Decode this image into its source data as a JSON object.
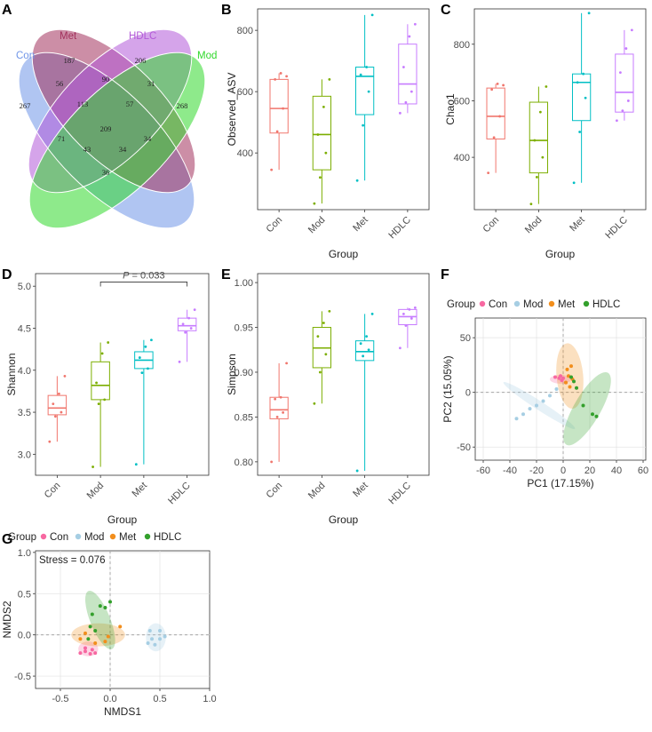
{
  "panels": {
    "A": {
      "letter": "A",
      "type": "venn",
      "sets": [
        {
          "name": "Con",
          "color": "#6f95e8"
        },
        {
          "name": "Met",
          "color": "#a2315d"
        },
        {
          "name": "HDLC",
          "color": "#b35ad8"
        },
        {
          "name": "Mod",
          "color": "#31d82c"
        }
      ],
      "regions": {
        "con_only": "267",
        "met_only": "187",
        "hdlc_only": "206",
        "mod_only": "268",
        "con_met": "56",
        "met_hdlc": "90",
        "hdlc_mod": "31",
        "con_met_hdlc": "113",
        "met_hdlc_mod": "57",
        "all": "209",
        "con_hdlc": "71",
        "met_mod": "34",
        "con_hdlc_mod": "34",
        "con_met_mod": "43",
        "con_mod": "36"
      }
    },
    "B": {
      "letter": "B",
      "type": "box",
      "ylabel": "Observed_ASV",
      "xlabel": "Group",
      "categories": [
        "Con",
        "Mod",
        "Met",
        "HDLC"
      ],
      "colors": [
        "#f0766d",
        "#7cae00",
        "#00bfc4",
        "#c77cff"
      ],
      "yticks": [
        "400",
        "600",
        "800"
      ],
      "ylim": [
        215,
        870
      ],
      "boxes": [
        {
          "min": 345,
          "q1": 465,
          "median": 545,
          "q3": 640,
          "max": 660
        },
        {
          "min": 235,
          "q1": 345,
          "median": 460,
          "q3": 585,
          "max": 640
        },
        {
          "min": 310,
          "q1": 525,
          "median": 650,
          "q3": 680,
          "max": 850
        },
        {
          "min": 530,
          "q1": 560,
          "median": 625,
          "q3": 755,
          "max": 820
        }
      ],
      "points": [
        [
          345,
          470,
          545,
          640,
          660,
          650
        ],
        [
          235,
          320,
          400,
          460,
          550,
          640
        ],
        [
          310,
          490,
          600,
          655,
          680,
          850
        ],
        [
          530,
          565,
          600,
          680,
          780,
          820
        ]
      ]
    },
    "C": {
      "letter": "C",
      "type": "box",
      "ylabel": "Chao1",
      "xlabel": "Group",
      "categories": [
        "Con",
        "Mod",
        "Met",
        "HDLC"
      ],
      "colors": [
        "#f0766d",
        "#7cae00",
        "#00bfc4",
        "#c77cff"
      ],
      "yticks": [
        "400",
        "600",
        "800"
      ],
      "ylim": [
        215,
        925
      ],
      "boxes": [
        {
          "min": 345,
          "q1": 465,
          "median": 545,
          "q3": 645,
          "max": 660
        },
        {
          "min": 235,
          "q1": 345,
          "median": 460,
          "q3": 595,
          "max": 650
        },
        {
          "min": 310,
          "q1": 530,
          "median": 665,
          "q3": 695,
          "max": 910
        },
        {
          "min": 530,
          "q1": 560,
          "median": 630,
          "q3": 765,
          "max": 850
        }
      ],
      "points": [
        [
          345,
          470,
          545,
          640,
          660,
          655
        ],
        [
          235,
          330,
          400,
          460,
          560,
          650
        ],
        [
          310,
          490,
          610,
          665,
          695,
          910
        ],
        [
          530,
          565,
          600,
          700,
          785,
          850
        ]
      ]
    },
    "D": {
      "letter": "D",
      "type": "box",
      "ylabel": "Shannon",
      "xlabel": "Group",
      "categories": [
        "Con",
        "Mod",
        "Met",
        "HDLC"
      ],
      "colors": [
        "#f0766d",
        "#7cae00",
        "#00bfc4",
        "#c77cff"
      ],
      "yticks": [
        "3.0",
        "3.5",
        "4.0",
        "4.5",
        "5.0"
      ],
      "ylim": [
        2.75,
        5.15
      ],
      "boxes": [
        {
          "min": 3.15,
          "q1": 3.47,
          "median": 3.55,
          "q3": 3.7,
          "max": 3.93
        },
        {
          "min": 2.85,
          "q1": 3.65,
          "median": 3.82,
          "q3": 4.1,
          "max": 4.33
        },
        {
          "min": 2.88,
          "q1": 4.02,
          "median": 4.12,
          "q3": 4.22,
          "max": 4.36
        },
        {
          "min": 4.1,
          "q1": 4.47,
          "median": 4.53,
          "q3": 4.62,
          "max": 4.72
        }
      ],
      "points": [
        [
          3.15,
          3.45,
          3.5,
          3.6,
          3.72,
          3.93
        ],
        [
          2.85,
          3.6,
          3.65,
          3.85,
          4.2,
          4.33
        ],
        [
          2.88,
          3.97,
          4.02,
          4.15,
          4.28,
          4.36
        ],
        [
          4.1,
          4.45,
          4.5,
          4.55,
          4.62,
          4.72
        ]
      ],
      "sig_prefix": "P",
      "sig_value": " = 0.033",
      "sig_from": 1,
      "sig_to": 3,
      "sig_y": 5.05
    },
    "E": {
      "letter": "E",
      "type": "box",
      "ylabel": "Simpson",
      "xlabel": "Group",
      "categories": [
        "Con",
        "Mod",
        "Met",
        "HDLC"
      ],
      "colors": [
        "#f0766d",
        "#7cae00",
        "#00bfc4",
        "#c77cff"
      ],
      "yticks": [
        "0.80",
        "0.85",
        "0.90",
        "0.95",
        "1.00"
      ],
      "ylim": [
        0.785,
        1.01
      ],
      "boxes": [
        {
          "min": 0.8,
          "q1": 0.848,
          "median": 0.858,
          "q3": 0.872,
          "max": 0.91
        },
        {
          "min": 0.865,
          "q1": 0.905,
          "median": 0.927,
          "q3": 0.95,
          "max": 0.968
        },
        {
          "min": 0.79,
          "q1": 0.913,
          "median": 0.923,
          "q3": 0.935,
          "max": 0.965
        },
        {
          "min": 0.927,
          "q1": 0.953,
          "median": 0.962,
          "q3": 0.97,
          "max": 0.972
        }
      ],
      "points": [
        [
          0.8,
          0.85,
          0.855,
          0.87,
          0.872,
          0.91
        ],
        [
          0.865,
          0.9,
          0.92,
          0.94,
          0.955,
          0.968
        ],
        [
          0.79,
          0.918,
          0.925,
          0.932,
          0.94,
          0.965
        ],
        [
          0.927,
          0.952,
          0.96,
          0.965,
          0.97,
          0.972
        ]
      ]
    },
    "F": {
      "letter": "F",
      "type": "scatter",
      "xlabel": "PC1 (17.15%)",
      "ylabel": "PC2 (15.05%)",
      "xticks": [
        "-60",
        "-40",
        "-20",
        "0",
        "20",
        "40",
        "60"
      ],
      "yticks": [
        "-50",
        "0",
        "50"
      ],
      "xlim": [
        -66,
        62
      ],
      "ylim": [
        -62,
        68
      ],
      "legend_title": "Group",
      "groups": [
        {
          "name": "Con",
          "color": "#f768a1",
          "points": [
            [
              -6,
              14
            ],
            [
              -3,
              13
            ],
            [
              -1,
              11
            ],
            [
              0,
              13
            ],
            [
              2,
              9
            ],
            [
              -2,
              15
            ]
          ],
          "ellipse": {
            "cx": -2,
            "cy": 12,
            "rx": 8,
            "ry": 4,
            "angle": 0
          }
        },
        {
          "name": "Mod",
          "color": "#a6cee3",
          "points": [
            [
              -35,
              -24
            ],
            [
              -30,
              -20
            ],
            [
              -25,
              -15
            ],
            [
              -20,
              -12
            ],
            [
              -15,
              -8
            ],
            [
              -10,
              -3
            ],
            [
              -5,
              3
            ]
          ],
          "ellipse": {
            "cx": -18,
            "cy": -12,
            "rx": 32,
            "ry": 4,
            "angle": -33
          }
        },
        {
          "name": "Met",
          "color": "#f28e1c",
          "points": [
            [
              3,
              21
            ],
            [
              6,
              24
            ],
            [
              4,
              15
            ],
            [
              7,
              12
            ],
            [
              2,
              9
            ],
            [
              5,
              5
            ]
          ],
          "ellipse": {
            "cx": 5,
            "cy": 15,
            "rx": 10,
            "ry": 30,
            "angle": 5
          }
        },
        {
          "name": "HDLC",
          "color": "#33a02c",
          "points": [
            [
              6,
              14
            ],
            [
              10,
              4
            ],
            [
              15,
              -12
            ],
            [
              22,
              -20
            ],
            [
              25,
              -22
            ],
            [
              8,
              10
            ]
          ],
          "ellipse": {
            "cx": 18,
            "cy": -15,
            "rx": 10,
            "ry": 38,
            "angle": -30
          }
        }
      ]
    },
    "G": {
      "letter": "G",
      "type": "scatter",
      "xlabel": "NMDS1",
      "ylabel": "NMDS2",
      "xticks": [
        "-0.5",
        "0.0",
        "0.5",
        "1.0"
      ],
      "yticks": [
        "-0.5",
        "0.0",
        "0.5",
        "1.0"
      ],
      "xlim": [
        -0.75,
        1.0
      ],
      "ylim": [
        -0.65,
        1.02
      ],
      "legend_title": "Group",
      "annotation": "Stress = 0.076",
      "groups": [
        {
          "name": "Con",
          "color": "#f768a1",
          "points": [
            [
              -0.3,
              -0.22
            ],
            [
              -0.25,
              -0.2
            ],
            [
              -0.2,
              -0.23
            ],
            [
              -0.15,
              -0.22
            ],
            [
              -0.25,
              -0.16
            ],
            [
              -0.18,
              -0.18
            ]
          ],
          "ellipse": {
            "cx": -0.22,
            "cy": -0.17,
            "rx": 0.1,
            "ry": 0.09,
            "angle": 0
          }
        },
        {
          "name": "Mod",
          "color": "#a6cee3",
          "points": [
            [
              0.4,
              0.05
            ],
            [
              0.5,
              0.05
            ],
            [
              0.42,
              -0.05
            ],
            [
              0.5,
              -0.05
            ],
            [
              0.45,
              -0.12
            ],
            [
              0.38,
              -0.1
            ],
            [
              0.55,
              -0.02
            ]
          ],
          "ellipse": {
            "cx": 0.46,
            "cy": -0.03,
            "rx": 0.1,
            "ry": 0.17,
            "angle": 0
          }
        },
        {
          "name": "Met",
          "color": "#f28e1c",
          "points": [
            [
              -0.3,
              -0.05
            ],
            [
              -0.15,
              -0.1
            ],
            [
              -0.05,
              -0.08
            ],
            [
              -0.02,
              -0.02
            ],
            [
              0.1,
              0.1
            ],
            [
              -0.25,
              0.02
            ]
          ],
          "ellipse": {
            "cx": -0.12,
            "cy": 0.0,
            "rx": 0.27,
            "ry": 0.14,
            "angle": 0
          }
        },
        {
          "name": "HDLC",
          "color": "#33a02c",
          "points": [
            [
              -0.18,
              0.25
            ],
            [
              -0.1,
              0.35
            ],
            [
              -0.05,
              0.33
            ],
            [
              0.0,
              0.4
            ],
            [
              -0.2,
              0.1
            ],
            [
              -0.15,
              0.05
            ],
            [
              -0.22,
              -0.05
            ]
          ],
          "ellipse": {
            "cx": -0.1,
            "cy": 0.18,
            "rx": 0.1,
            "ry": 0.38,
            "angle": 22
          }
        }
      ]
    }
  },
  "chart_data": [
    {
      "panel": "B",
      "type": "box",
      "ylabel": "Observed_ASV",
      "xlabel": "Group",
      "categories": [
        "Con",
        "Mod",
        "Met",
        "HDLC"
      ],
      "medians": [
        545,
        460,
        650,
        625
      ]
    },
    {
      "panel": "C",
      "type": "box",
      "ylabel": "Chao1",
      "xlabel": "Group",
      "categories": [
        "Con",
        "Mod",
        "Met",
        "HDLC"
      ],
      "medians": [
        545,
        460,
        665,
        630
      ]
    },
    {
      "panel": "D",
      "type": "box",
      "ylabel": "Shannon",
      "xlabel": "Group",
      "categories": [
        "Con",
        "Mod",
        "Met",
        "HDLC"
      ],
      "medians": [
        3.55,
        3.82,
        4.12,
        4.53
      ],
      "annotation": "P = 0.033"
    },
    {
      "panel": "E",
      "type": "box",
      "ylabel": "Simpson",
      "xlabel": "Group",
      "categories": [
        "Con",
        "Mod",
        "Met",
        "HDLC"
      ],
      "medians": [
        0.858,
        0.927,
        0.923,
        0.962
      ]
    },
    {
      "panel": "F",
      "type": "scatter",
      "xlabel": "PC1 (17.15%)",
      "ylabel": "PC2 (15.05%)",
      "series": [
        "Con",
        "Mod",
        "Met",
        "HDLC"
      ]
    },
    {
      "panel": "G",
      "type": "scatter",
      "xlabel": "NMDS1",
      "ylabel": "NMDS2",
      "series": [
        "Con",
        "Mod",
        "Met",
        "HDLC"
      ],
      "annotation": "Stress = 0.076"
    }
  ]
}
